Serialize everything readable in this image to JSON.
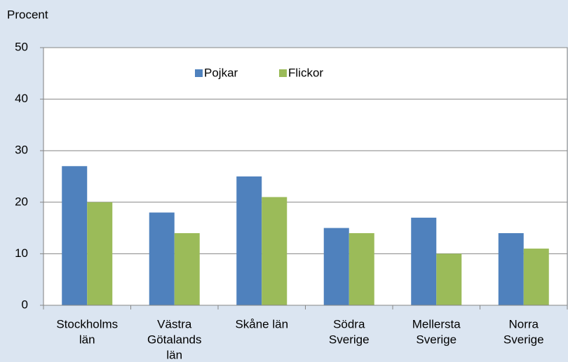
{
  "chart_data": {
    "type": "bar",
    "y_label": "Procent",
    "categories": [
      [
        "Stockholms",
        "län"
      ],
      [
        "Västra",
        "Götalands",
        "län"
      ],
      [
        "Skåne län"
      ],
      [
        "Södra",
        "Sverige"
      ],
      [
        "Mellersta",
        "Sverige"
      ],
      [
        "Norra",
        "Sverige"
      ]
    ],
    "series": [
      {
        "name": "Pojkar",
        "color": "#4f81bd",
        "values": [
          27,
          18,
          25,
          15,
          17,
          14
        ]
      },
      {
        "name": "Flickor",
        "color": "#9bbb59",
        "values": [
          20,
          14,
          21,
          14,
          10,
          11
        ]
      }
    ],
    "ylim": [
      0,
      50
    ],
    "yticks": [
      0,
      10,
      20,
      30,
      40,
      50
    ],
    "grid": true,
    "legend": "top"
  }
}
